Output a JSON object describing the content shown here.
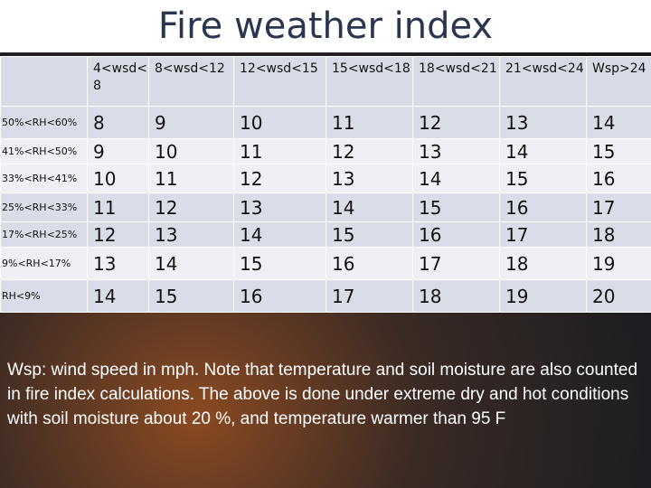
{
  "title": "Fire weather index",
  "table": {
    "columns": [
      "4<wsd< 8",
      "8<wsd<12",
      "12<wsd<15",
      "15<wsd<18",
      "18<wsd<21",
      "21<wsd<24",
      "Wsp>24"
    ],
    "rows": [
      {
        "label": "50%<RH<60%",
        "values": [
          "8",
          "9",
          "10",
          "11",
          "12",
          "13",
          "14"
        ]
      },
      {
        "label": "41%<RH<50%",
        "values": [
          "9",
          "10",
          "11",
          "12",
          "13",
          "14",
          "15"
        ]
      },
      {
        "label": "33%<RH<41%",
        "values": [
          "10",
          "11",
          "12",
          "13",
          "14",
          "15",
          "16"
        ]
      },
      {
        "label": "25%<RH<33%",
        "values": [
          "11",
          "12",
          "13",
          "14",
          "15",
          "16",
          "17"
        ]
      },
      {
        "label": "17%<RH<25%",
        "values": [
          "12",
          "13",
          "14",
          "15",
          "16",
          "17",
          "18"
        ]
      },
      {
        "label": "9%<RH<17%",
        "values": [
          "13",
          "14",
          "15",
          "16",
          "17",
          "18",
          "19"
        ]
      },
      {
        "label": "RH<9%",
        "values": [
          "14",
          "15",
          "16",
          "17",
          "18",
          "19",
          "20"
        ]
      }
    ]
  },
  "caption": "Wsp: wind speed in mph. Note that temperature and soil moisture are also counted in fire index calculations. The above is done under extreme dry and hot conditions with soil moisture about 20 %, and temperature warmer than 95 F"
}
